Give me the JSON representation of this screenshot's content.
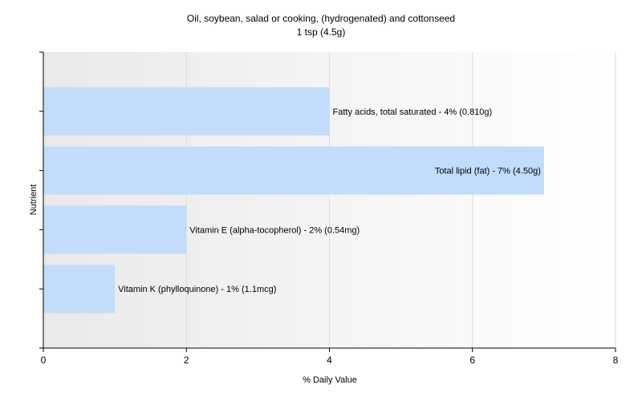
{
  "chart_data": {
    "type": "bar",
    "orientation": "horizontal",
    "title": "Oil, soybean, salad or cooking, (hydrogenated) and cottonseed",
    "subtitle": "1 tsp (4.5g)",
    "xlabel": "% Daily Value",
    "ylabel": "Nutrient",
    "xlim": [
      0,
      8
    ],
    "xticks": [
      0,
      2,
      4,
      6,
      8
    ],
    "grid": true,
    "bar_color": "#c2dcfb",
    "categories": [
      "Fatty acids, total saturated",
      "Total lipid (fat)",
      "Vitamin E (alpha-tocopherol)",
      "Vitamin K (phylloquinone)"
    ],
    "values": [
      4,
      7,
      2,
      1
    ],
    "labels": [
      "Fatty acids, total saturated - 4% (0.810g)",
      "Total lipid (fat) - 7% (4.50g)",
      "Vitamin E (alpha-tocopherol) - 2% (0.54mg)",
      "Vitamin K (phylloquinone) - 1% (1.1mcg)"
    ]
  }
}
